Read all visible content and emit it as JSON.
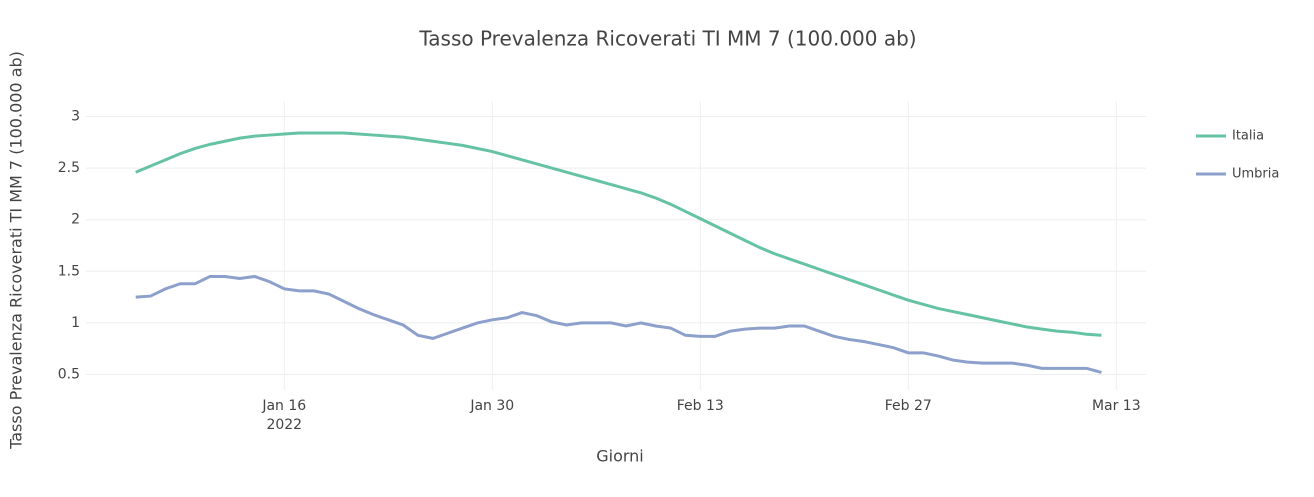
{
  "chart_data": {
    "type": "line",
    "title": "Tasso Prevalenza Ricoverati TI MM 7 (100.000 ab)",
    "x_label": "Giorni",
    "y_label": "Tasso Prevalenza Ricoverati TI MM 7 (100.000 ab)",
    "x": [
      "2022-01-06",
      "2022-01-07",
      "2022-01-08",
      "2022-01-09",
      "2022-01-10",
      "2022-01-11",
      "2022-01-12",
      "2022-01-13",
      "2022-01-14",
      "2022-01-15",
      "2022-01-16",
      "2022-01-17",
      "2022-01-18",
      "2022-01-19",
      "2022-01-20",
      "2022-01-21",
      "2022-01-22",
      "2022-01-23",
      "2022-01-24",
      "2022-01-25",
      "2022-01-26",
      "2022-01-27",
      "2022-01-28",
      "2022-01-29",
      "2022-01-30",
      "2022-01-31",
      "2022-02-01",
      "2022-02-02",
      "2022-02-03",
      "2022-02-04",
      "2022-02-05",
      "2022-02-06",
      "2022-02-07",
      "2022-02-08",
      "2022-02-09",
      "2022-02-10",
      "2022-02-11",
      "2022-02-12",
      "2022-02-13",
      "2022-02-14",
      "2022-02-15",
      "2022-02-16",
      "2022-02-17",
      "2022-02-18",
      "2022-02-19",
      "2022-02-20",
      "2022-02-21",
      "2022-02-22",
      "2022-02-23",
      "2022-02-24",
      "2022-02-25",
      "2022-02-26",
      "2022-02-27",
      "2022-02-28",
      "2022-03-01",
      "2022-03-02",
      "2022-03-03",
      "2022-03-04",
      "2022-03-05",
      "2022-03-06",
      "2022-03-07",
      "2022-03-08",
      "2022-03-09",
      "2022-03-10",
      "2022-03-11",
      "2022-03-12"
    ],
    "series": [
      {
        "name": "Italia",
        "color": "#66c2a5",
        "values": [
          2.46,
          2.52,
          2.58,
          2.64,
          2.69,
          2.73,
          2.76,
          2.79,
          2.81,
          2.82,
          2.83,
          2.84,
          2.84,
          2.84,
          2.84,
          2.83,
          2.82,
          2.81,
          2.8,
          2.78,
          2.76,
          2.74,
          2.72,
          2.69,
          2.66,
          2.62,
          2.58,
          2.54,
          2.5,
          2.46,
          2.42,
          2.38,
          2.34,
          2.3,
          2.26,
          2.21,
          2.15,
          2.08,
          2.01,
          1.94,
          1.87,
          1.8,
          1.73,
          1.67,
          1.62,
          1.57,
          1.52,
          1.47,
          1.42,
          1.37,
          1.32,
          1.27,
          1.22,
          1.18,
          1.14,
          1.11,
          1.08,
          1.05,
          1.02,
          0.99,
          0.96,
          0.94,
          0.92,
          0.91,
          0.89,
          0.88
        ]
      },
      {
        "name": "Umbria",
        "color": "#8da0cb",
        "values": [
          1.25,
          1.26,
          1.33,
          1.38,
          1.38,
          1.45,
          1.45,
          1.43,
          1.45,
          1.4,
          1.33,
          1.31,
          1.31,
          1.28,
          1.21,
          1.14,
          1.08,
          1.03,
          0.98,
          0.88,
          0.85,
          0.9,
          0.95,
          1.0,
          1.03,
          1.05,
          1.1,
          1.07,
          1.01,
          0.98,
          1.0,
          1.0,
          1.0,
          0.97,
          1.0,
          0.97,
          0.95,
          0.88,
          0.87,
          0.87,
          0.92,
          0.94,
          0.95,
          0.95,
          0.97,
          0.97,
          0.92,
          0.87,
          0.84,
          0.82,
          0.79,
          0.76,
          0.71,
          0.71,
          0.68,
          0.64,
          0.62,
          0.61,
          0.61,
          0.61,
          0.59,
          0.56,
          0.56,
          0.56,
          0.56,
          0.52
        ]
      }
    ],
    "xlim": [
      "2022-01-04",
      "2022-03-15"
    ],
    "xticks": [
      {
        "value": "2022-01-16",
        "label": "Jan 16"
      },
      {
        "value": "2022-01-30",
        "label": "Jan 30"
      },
      {
        "value": "2022-02-13",
        "label": "Feb 13"
      },
      {
        "value": "2022-02-27",
        "label": "Feb 27"
      },
      {
        "value": "2022-03-13",
        "label": "Mar 13"
      }
    ],
    "x_year_label": "2022",
    "ylim": [
      0.35,
      3.15
    ],
    "yticks": [
      0.5,
      1,
      1.5,
      2,
      2.5,
      3
    ],
    "grid": true,
    "legend": "right"
  }
}
